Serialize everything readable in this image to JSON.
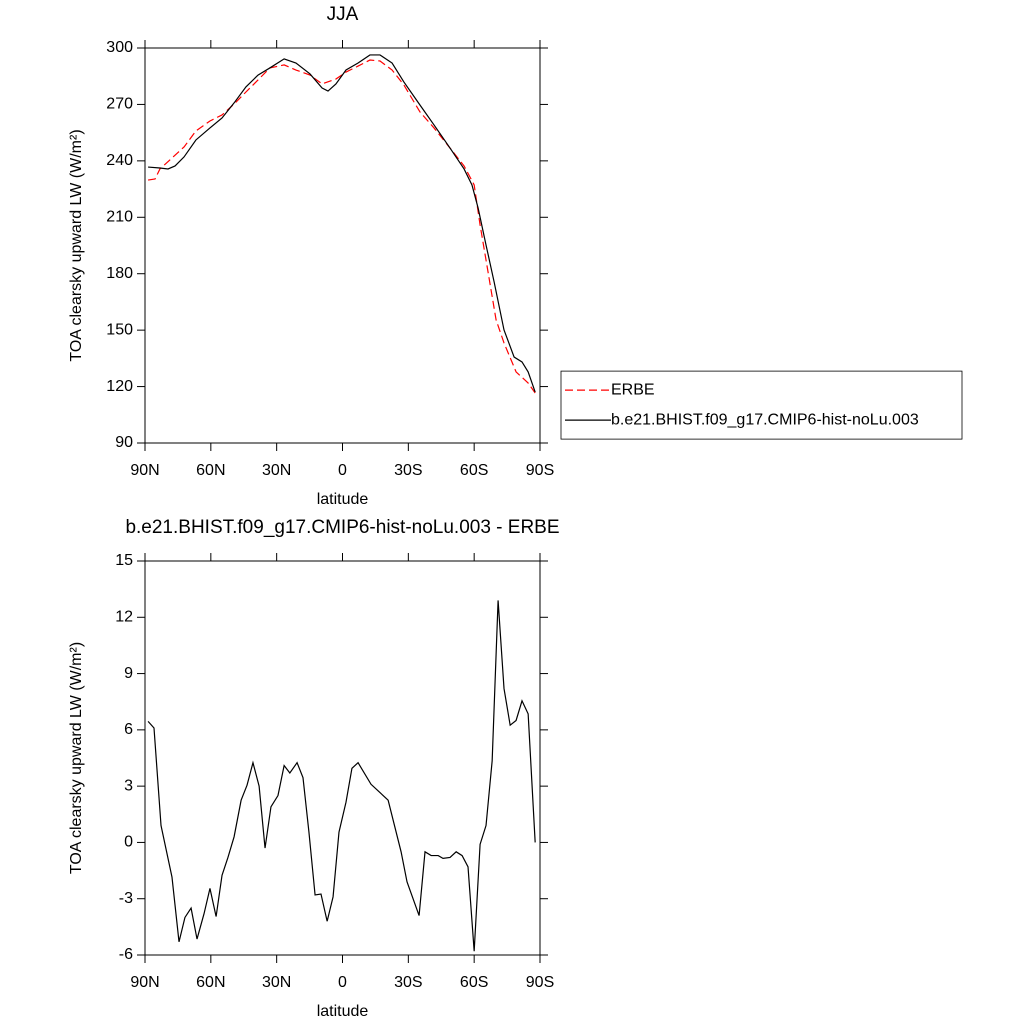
{
  "chart_data": [
    {
      "type": "line",
      "title": "JJA",
      "xlabel": "latitude",
      "ylabel": "TOA clearsky upward LW (W/m²)",
      "xlim": [
        90,
        -90
      ],
      "xticks": [
        {
          "value": 90,
          "label": "90N"
        },
        {
          "value": 60,
          "label": "60N"
        },
        {
          "value": 30,
          "label": "30N"
        },
        0,
        {
          "value": -30,
          "label": "30S"
        },
        {
          "value": -60,
          "label": "60S"
        },
        {
          "value": -90,
          "label": "90S"
        }
      ],
      "ylim": [
        90,
        300
      ],
      "yticks": [
        90,
        120,
        150,
        180,
        210,
        240,
        270,
        300
      ],
      "legend": "right",
      "series": [
        {
          "name": "ERBE",
          "color": "#ff0000",
          "line_style": "dashed",
          "x": [
            88.6,
            85.4,
            83.2,
            77.7,
            72.2,
            66.8,
            60.4,
            54.9,
            49.4,
            44.0,
            38.5,
            33.1,
            26.6,
            21.2,
            14.8,
            9.3,
            3.0,
            -1.6,
            -7.1,
            -12.5,
            -17.1,
            -22.6,
            -28.0,
            -35.3,
            -41.7,
            -49.0,
            -55.4,
            -60.0,
            -62.7,
            -65.4,
            -70.0,
            -73.6,
            -79.1,
            -84.6,
            -87.8
          ],
          "values": [
            229.8,
            230.4,
            235.7,
            241.5,
            247.4,
            255.9,
            261.2,
            264.4,
            270.2,
            276.6,
            283.0,
            289.4,
            291.0,
            288.3,
            285.6,
            280.9,
            283.5,
            287.2,
            290.4,
            293.6,
            293.1,
            288.3,
            280.3,
            266.0,
            257.5,
            246.8,
            237.3,
            227.2,
            205.9,
            187.3,
            155.4,
            143.2,
            127.8,
            121.9,
            116.6
          ]
        },
        {
          "name": "b.e21.BHIST.f09_g17.CMIP6-hist-noLu.003",
          "color": "#000000",
          "line_style": "solid",
          "x": [
            88.6,
            83.2,
            79.5,
            76.3,
            72.2,
            66.8,
            60.4,
            54.9,
            49.4,
            44.0,
            38.5,
            33.1,
            26.6,
            21.2,
            14.8,
            9.3,
            6.6,
            3.0,
            -1.6,
            -7.1,
            -12.5,
            -17.1,
            -22.6,
            -28.0,
            -35.3,
            -41.7,
            -49.0,
            -55.4,
            -59.0,
            -61.8,
            -65.4,
            -69.1,
            -73.6,
            -78.2,
            -81.8,
            -84.6,
            -87.8
          ],
          "values": [
            236.7,
            236.2,
            235.7,
            237.3,
            242.1,
            251.1,
            257.5,
            262.8,
            270.8,
            279.3,
            285.6,
            289.4,
            294.2,
            292.0,
            286.2,
            278.7,
            277.1,
            280.9,
            288.3,
            292.0,
            296.3,
            296.3,
            292.0,
            281.9,
            269.7,
            259.1,
            246.8,
            235.7,
            227.2,
            214.9,
            195.3,
            175.6,
            150.1,
            135.7,
            133.1,
            127.8,
            117.1
          ]
        }
      ]
    },
    {
      "type": "line",
      "title": "b.e21.BHIST.f09_g17.CMIP6-hist-noLu.003 - ERBE",
      "xlabel": "latitude",
      "ylabel": "TOA clearsky upward LW (W/m²)",
      "xlim": [
        90,
        -90
      ],
      "xticks": [
        {
          "value": 90,
          "label": "90N"
        },
        {
          "value": 60,
          "label": "60N"
        },
        {
          "value": 30,
          "label": "30N"
        },
        0,
        {
          "value": -30,
          "label": "30S"
        },
        {
          "value": -60,
          "label": "60S"
        },
        {
          "value": -90,
          "label": "90S"
        }
      ],
      "ylim": [
        -6,
        15
      ],
      "yticks": [
        -6,
        -3,
        0,
        3,
        6,
        9,
        12,
        15
      ],
      "color": "#000000",
      "x": [
        88.6,
        85.9,
        82.7,
        77.7,
        74.5,
        71.8,
        69.0,
        66.3,
        63.1,
        60.4,
        57.6,
        54.9,
        52.2,
        49.4,
        46.2,
        43.5,
        40.8,
        38.0,
        35.3,
        32.6,
        29.4,
        26.6,
        24.0,
        20.7,
        18.0,
        15.3,
        12.5,
        9.8,
        7.0,
        4.3,
        1.6,
        -1.6,
        -4.3,
        -7.1,
        -13.0,
        -20.8,
        -26.7,
        -29.4,
        -34.9,
        -37.6,
        -40.4,
        -43.6,
        -45.8,
        -49.0,
        -51.8,
        -54.5,
        -57.2,
        -60.0,
        -62.7,
        -65.4,
        -68.2,
        -70.9,
        -73.6,
        -76.4,
        -79.1,
        -81.8,
        -84.6,
        -87.8
      ],
      "values": [
        6.45,
        6.1,
        0.9,
        -1.85,
        -5.3,
        -4.0,
        -3.5,
        -5.15,
        -3.8,
        -2.45,
        -3.95,
        -1.75,
        -0.8,
        0.3,
        2.25,
        3.05,
        4.25,
        3.0,
        -0.3,
        1.9,
        2.5,
        4.1,
        3.7,
        4.25,
        3.45,
        0.55,
        -2.8,
        -2.75,
        -4.2,
        -2.9,
        0.55,
        2.15,
        3.95,
        4.25,
        3.1,
        2.25,
        -0.5,
        -2.1,
        -3.9,
        -0.5,
        -0.7,
        -0.7,
        -0.85,
        -0.8,
        -0.5,
        -0.7,
        -1.3,
        -5.8,
        -0.1,
        0.9,
        4.35,
        12.9,
        8.2,
        6.25,
        6.5,
        7.55,
        6.85,
        0.0
      ]
    }
  ]
}
